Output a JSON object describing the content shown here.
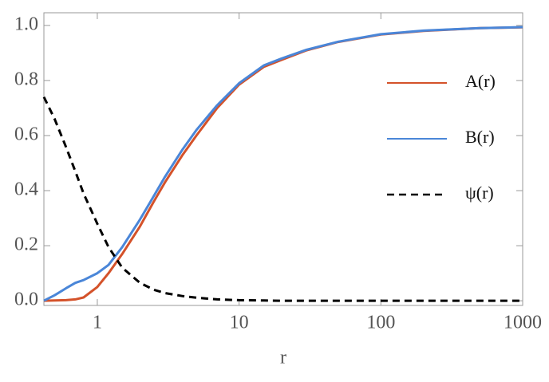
{
  "chart_data": {
    "type": "line",
    "x_label": "r",
    "log_x": true,
    "x": [
      0.42,
      0.5,
      0.6,
      0.7,
      0.8,
      1,
      1.2,
      1.5,
      2,
      2.5,
      3,
      4,
      5,
      7,
      10,
      15,
      20,
      30,
      50,
      100,
      200,
      500,
      1000
    ],
    "series": [
      {
        "name": "A(r)",
        "color": "#d4522a",
        "dash": false,
        "values": [
          0,
          0.001,
          0.002,
          0.005,
          0.012,
          0.05,
          0.1,
          0.17,
          0.27,
          0.36,
          0.43,
          0.53,
          0.6,
          0.7,
          0.785,
          0.85,
          0.875,
          0.91,
          0.94,
          0.967,
          0.98,
          0.99,
          0.993
        ]
      },
      {
        "name": "B(r)",
        "color": "#4a86d8",
        "dash": false,
        "values": [
          0,
          0.02,
          0.045,
          0.065,
          0.075,
          0.1,
          0.13,
          0.195,
          0.295,
          0.38,
          0.45,
          0.55,
          0.62,
          0.71,
          0.79,
          0.855,
          0.88,
          0.912,
          0.941,
          0.968,
          0.981,
          0.99,
          0.994
        ]
      },
      {
        "name": "ψ(r)",
        "color": "#000000",
        "dash": true,
        "values": [
          0.74,
          0.66,
          0.56,
          0.47,
          0.39,
          0.28,
          0.195,
          0.12,
          0.065,
          0.04,
          0.028,
          0.017,
          0.011,
          0.005,
          0.002,
          0.001,
          0,
          0,
          0,
          0,
          0,
          0,
          0
        ]
      }
    ],
    "xlim": [
      0.42,
      1000
    ],
    "xticks": [
      1,
      10,
      100,
      1000
    ],
    "ylim": [
      -0.017,
      1.046
    ],
    "yticks": [
      {
        "value": 0,
        "label": "0.0"
      },
      {
        "value": 0.2,
        "label": "0.2"
      },
      {
        "value": 0.4,
        "label": "0.4"
      },
      {
        "value": 0.6,
        "label": "0.6"
      },
      {
        "value": 0.8,
        "label": "0.8"
      },
      {
        "value": 1,
        "label": "1.0"
      }
    ],
    "legend": "right"
  }
}
